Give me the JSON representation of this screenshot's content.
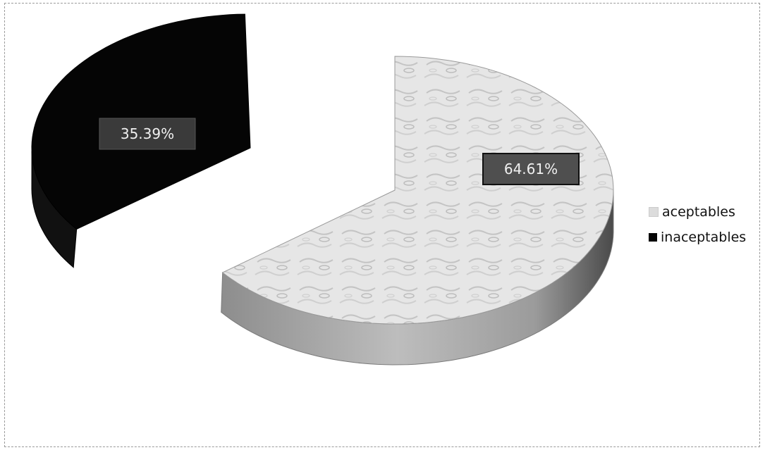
{
  "chart_data": {
    "type": "pie",
    "title": "",
    "categories": [
      "aceptables",
      "inaceptables"
    ],
    "values": [
      64.61,
      35.39
    ],
    "data_labels": [
      "64.61%",
      "35.39%"
    ],
    "legend_position": "right",
    "colors": [
      "#dcdcdc",
      "#050505"
    ],
    "style": "3d-exploded"
  },
  "legend": {
    "items": [
      {
        "label": "aceptables",
        "color": "#dcdcdc"
      },
      {
        "label": "inaceptables",
        "color": "#050505"
      }
    ]
  }
}
